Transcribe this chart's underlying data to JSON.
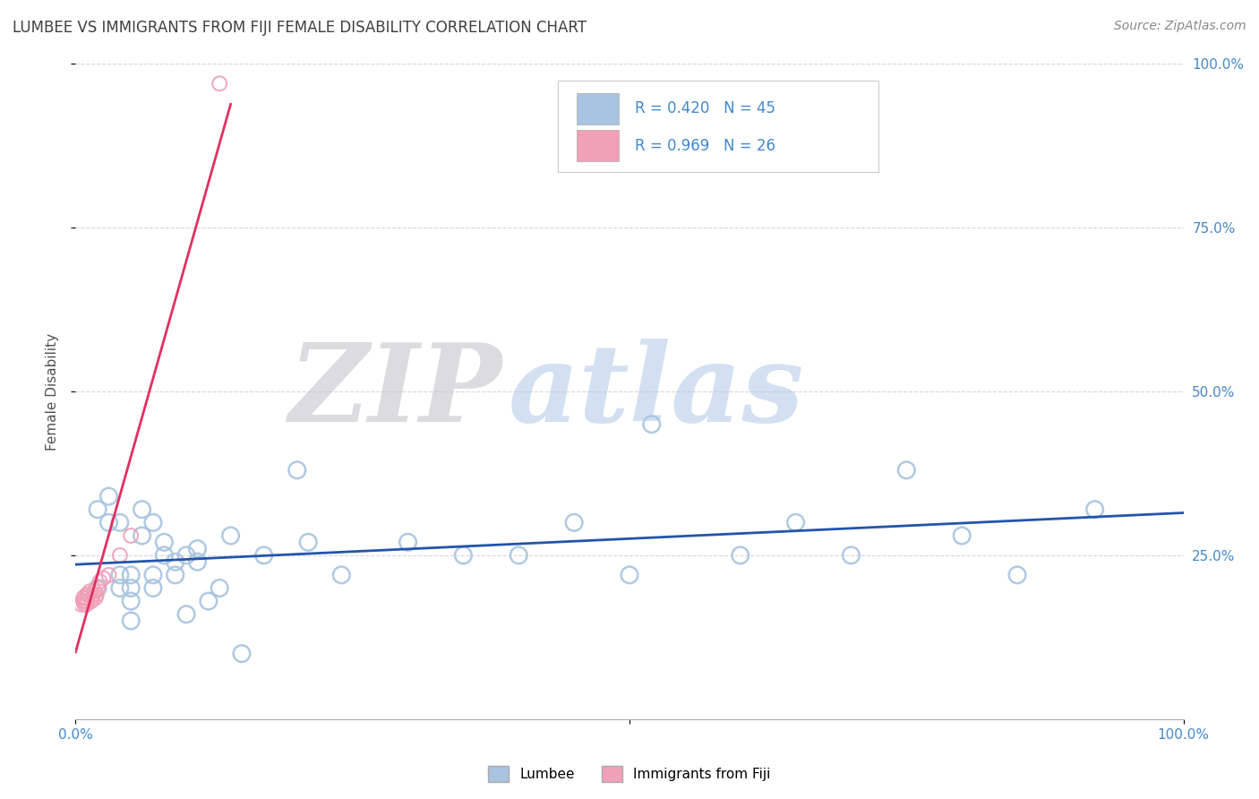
{
  "title": "LUMBEE VS IMMIGRANTS FROM FIJI FEMALE DISABILITY CORRELATION CHART",
  "source_text": "Source: ZipAtlas.com",
  "ylabel": "Female Disability",
  "xlim": [
    0.0,
    1.0
  ],
  "ylim": [
    0.0,
    1.0
  ],
  "x_ticks": [
    0.0,
    1.0
  ],
  "x_tick_labels": [
    "0.0%",
    "100.0%"
  ],
  "y_tick_values": [
    0.25,
    0.5,
    0.75,
    1.0
  ],
  "y_tick_labels": [
    "25.0%",
    "50.0%",
    "75.0%",
    "100.0%"
  ],
  "watermark_zip": "ZIP",
  "watermark_atlas": "atlas",
  "lumbee_color": "#a8c4e0",
  "fiji_color": "#f0a0b8",
  "lumbee_line_color": "#2255aa",
  "fiji_line_color": "#e03060",
  "lumbee_scatter_x": [
    0.02,
    0.02,
    0.03,
    0.03,
    0.04,
    0.04,
    0.04,
    0.05,
    0.05,
    0.05,
    0.05,
    0.06,
    0.06,
    0.07,
    0.07,
    0.07,
    0.08,
    0.08,
    0.09,
    0.09,
    0.1,
    0.1,
    0.11,
    0.11,
    0.12,
    0.13,
    0.14,
    0.15,
    0.17,
    0.2,
    0.21,
    0.24,
    0.3,
    0.35,
    0.4,
    0.45,
    0.5,
    0.52,
    0.6,
    0.65,
    0.7,
    0.75,
    0.8,
    0.85,
    0.92
  ],
  "lumbee_scatter_y": [
    0.2,
    0.32,
    0.3,
    0.34,
    0.2,
    0.22,
    0.3,
    0.2,
    0.22,
    0.18,
    0.15,
    0.32,
    0.28,
    0.2,
    0.22,
    0.3,
    0.25,
    0.27,
    0.22,
    0.24,
    0.16,
    0.25,
    0.24,
    0.26,
    0.18,
    0.2,
    0.28,
    0.1,
    0.25,
    0.38,
    0.27,
    0.22,
    0.27,
    0.25,
    0.25,
    0.3,
    0.22,
    0.45,
    0.25,
    0.3,
    0.25,
    0.38,
    0.28,
    0.22,
    0.32
  ],
  "fiji_scatter_x": [
    0.005,
    0.007,
    0.007,
    0.008,
    0.008,
    0.009,
    0.009,
    0.01,
    0.01,
    0.01,
    0.01,
    0.012,
    0.013,
    0.014,
    0.015,
    0.016,
    0.017,
    0.018,
    0.019,
    0.02,
    0.022,
    0.025,
    0.03,
    0.04,
    0.05,
    0.13
  ],
  "fiji_scatter_y": [
    0.175,
    0.18,
    0.185,
    0.175,
    0.18,
    0.185,
    0.18,
    0.175,
    0.18,
    0.185,
    0.19,
    0.19,
    0.195,
    0.18,
    0.185,
    0.19,
    0.195,
    0.185,
    0.19,
    0.2,
    0.21,
    0.215,
    0.22,
    0.25,
    0.28,
    0.97
  ],
  "background_color": "#ffffff",
  "grid_color": "#cccccc",
  "title_color": "#404040",
  "axis_label_color": "#505050",
  "tick_label_color": "#4488cc",
  "source_color": "#888888"
}
